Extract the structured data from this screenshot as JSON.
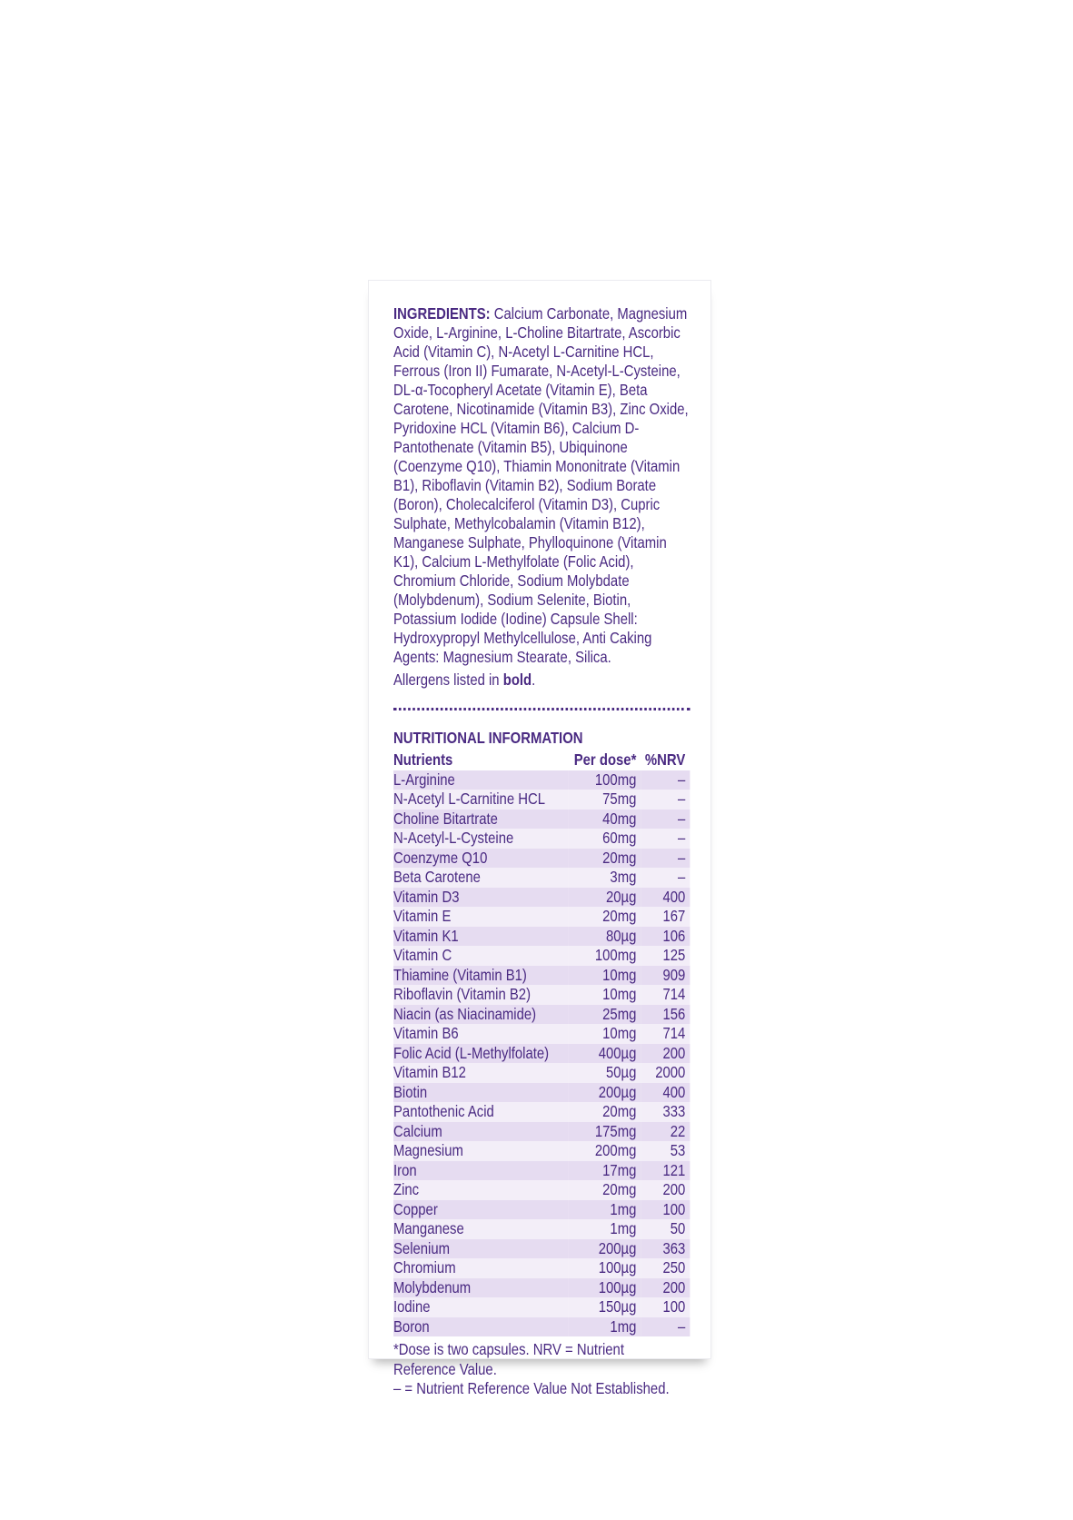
{
  "ingredients": {
    "label": "INGREDIENTS:",
    "text": "Calcium Carbonate, Magnesium Oxide, L-Arginine, L-Choline Bitartrate, Ascorbic Acid (Vitamin C), N-Acetyl L-Carnitine HCL, Ferrous (Iron II) Fumarate, N-Acetyl-L-Cysteine, DL-α-Tocopheryl Acetate (Vitamin E), Beta Carotene, Nicotinamide (Vitamin B3), Zinc Oxide, Pyridoxine HCL (Vitamin B6), Calcium D-Pantothenate (Vitamin B5), Ubiquinone (Coenzyme Q10), Thiamin Mononitrate (Vitamin B1), Riboflavin (Vitamin B2), Sodium Borate (Boron), Cholecalciferol (Vitamin D3), Cupric Sulphate, Methylcobalamin (Vitamin B12), Manganese Sulphate, Phylloquinone (Vitamin K1), Calcium L-Methylfolate (Folic Acid), Chromium Chloride, Sodium Molybdate (Molybdenum), Sodium Selenite, Biotin, Potassium Iodide (Iodine) Capsule Shell: Hydroxypropyl Methylcellulose, Anti Caking Agents: Magnesium Stearate, Silica."
  },
  "allergens": {
    "before": "Allergens listed in",
    "bold": "bold",
    "after": "."
  },
  "nutrition": {
    "title": "NUTRITIONAL INFORMATION",
    "headers": [
      "Nutrients",
      "Per dose*",
      "%NRV"
    ],
    "rows": [
      [
        "L-Arginine",
        "100mg",
        "–"
      ],
      [
        "N-Acetyl L-Carnitine HCL",
        "75mg",
        "–"
      ],
      [
        "Choline Bitartrate",
        "40mg",
        "–"
      ],
      [
        "N-Acetyl-L-Cysteine",
        "60mg",
        "–"
      ],
      [
        "Coenzyme Q10",
        "20mg",
        "–"
      ],
      [
        "Beta Carotene",
        "3mg",
        "–"
      ],
      [
        "Vitamin D3",
        "20µg",
        "400"
      ],
      [
        "Vitamin E",
        "20mg",
        "167"
      ],
      [
        "Vitamin K1",
        "80µg",
        "106"
      ],
      [
        "Vitamin C",
        "100mg",
        "125"
      ],
      [
        "Thiamine (Vitamin B1)",
        "10mg",
        "909"
      ],
      [
        "Riboflavin (Vitamin B2)",
        "10mg",
        "714"
      ],
      [
        "Niacin (as Niacinamide)",
        "25mg",
        "156"
      ],
      [
        "Vitamin B6",
        "10mg",
        "714"
      ],
      [
        "Folic Acid (L-Methylfolate)",
        "400µg",
        "200"
      ],
      [
        "Vitamin B12",
        "50µg",
        "2000"
      ],
      [
        "Biotin",
        "200µg",
        "400"
      ],
      [
        "Pantothenic Acid",
        "20mg",
        "333"
      ],
      [
        "Calcium",
        "175mg",
        "22"
      ],
      [
        "Magnesium",
        "200mg",
        "53"
      ],
      [
        "Iron",
        "17mg",
        "121"
      ],
      [
        "Zinc",
        "20mg",
        "200"
      ],
      [
        "Copper",
        "1mg",
        "100"
      ],
      [
        "Manganese",
        "1mg",
        "50"
      ],
      [
        "Selenium",
        "200µg",
        "363"
      ],
      [
        "Chromium",
        "100µg",
        "250"
      ],
      [
        "Molybdenum",
        "100µg",
        "200"
      ],
      [
        "Iodine",
        "150µg",
        "100"
      ],
      [
        "Boron",
        "1mg",
        "–"
      ]
    ],
    "footnotes": [
      "*Dose is two capsules. NRV = Nutrient Reference Value.",
      "– = Nutrient Reference Value Not Established."
    ]
  }
}
